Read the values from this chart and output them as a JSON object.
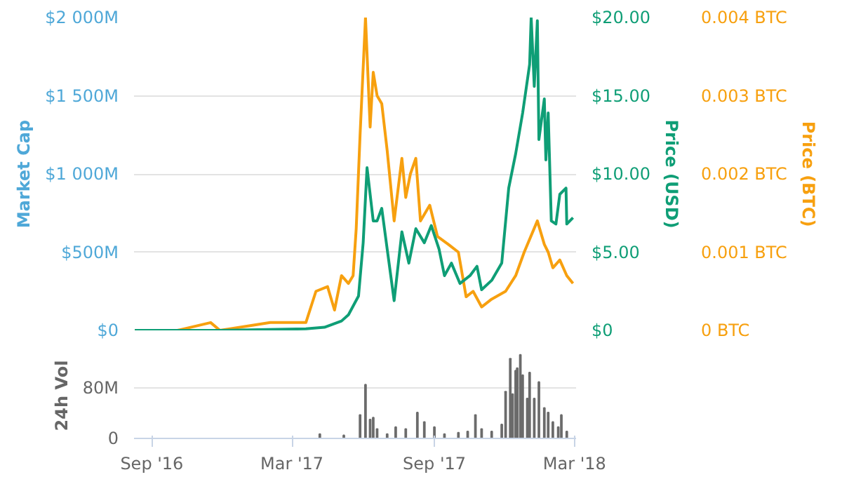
{
  "chart_data": [
    {
      "type": "line",
      "ylabel": "Market Cap",
      "y2label": "Price (USD)",
      "y3label": "Price (BTC)",
      "tick_labels": "y",
      "grid": "y",
      "xlim": [
        "2016-08-09",
        "2018-03-03"
      ],
      "ylim": [
        0,
        2000
      ],
      "yticks": [
        {
          "value": 0,
          "label": "$0"
        },
        {
          "value": 500,
          "label": "$500M"
        },
        {
          "value": 1000,
          "label": "$1 000M"
        },
        {
          "value": 1500,
          "label": "$1 500M"
        },
        {
          "value": 2000,
          "label": "$2 000M"
        }
      ],
      "y2lim": [
        0,
        20
      ],
      "y2ticks": [
        {
          "value": 0,
          "label": "$0"
        },
        {
          "value": 5,
          "label": "$5.00"
        },
        {
          "value": 10,
          "label": "$10.00"
        },
        {
          "value": 15,
          "label": "$15.00"
        },
        {
          "value": 20,
          "label": "$20.00"
        }
      ],
      "y3lim": [
        0,
        0.004
      ],
      "y3ticks": [
        {
          "value": 0,
          "label": "0 BTC"
        },
        {
          "value": 0.001,
          "label": "0.001 BTC"
        },
        {
          "value": 0.002,
          "label": "0.002 BTC"
        },
        {
          "value": 0.003,
          "label": "0.003 BTC"
        },
        {
          "value": 0.004,
          "label": "0.004 BTC"
        }
      ],
      "series": [
        {
          "axis": "y3",
          "color": "#f7a00f",
          "x": [
            "2016-08-10",
            "2016-10-04",
            "2016-11-16",
            "2016-11-28",
            "2017-02-01",
            "2017-03-19",
            "2017-04-01",
            "2017-04-16",
            "2017-04-25",
            "2017-05-04",
            "2017-05-13",
            "2017-05-19",
            "2017-05-23",
            "2017-05-28",
            "2017-06-04",
            "2017-06-10",
            "2017-06-14",
            "2017-06-19",
            "2017-06-25",
            "2017-07-02",
            "2017-07-11",
            "2017-07-21",
            "2017-07-26",
            "2017-08-01",
            "2017-08-08",
            "2017-08-14",
            "2017-08-26",
            "2017-09-05",
            "2017-09-19",
            "2017-10-02",
            "2017-10-12",
            "2017-10-21",
            "2017-11-01",
            "2017-11-14",
            "2017-12-02",
            "2017-12-15",
            "2017-12-26",
            "2018-01-12",
            "2018-01-21",
            "2018-01-26",
            "2018-02-01",
            "2018-02-10",
            "2018-02-19",
            "2018-02-27"
          ],
          "values": [
            0,
            0,
            0.0001,
            0,
            0.0001,
            0.0001,
            0.0005,
            0.00056,
            0.00026,
            0.0007,
            0.0006,
            0.0007,
            0.0013,
            0.0025,
            0.004,
            0.0026,
            0.0033,
            0.003,
            0.0029,
            0.0023,
            0.0014,
            0.0022,
            0.0017,
            0.002,
            0.0022,
            0.0014,
            0.0016,
            0.0012,
            0.0011,
            0.001,
            0.00043,
            0.0005,
            0.0003,
            0.0004,
            0.0005,
            0.0007,
            0.001,
            0.0014,
            0.0011,
            0.001,
            0.0008,
            0.0009,
            0.0007,
            0.0006
          ]
        },
        {
          "axis": "y2",
          "color": "#0f9e76",
          "x": [
            "2016-08-10",
            "2016-11-28",
            "2017-03-19",
            "2017-04-12",
            "2017-05-04",
            "2017-05-13",
            "2017-05-26",
            "2017-06-01",
            "2017-06-06",
            "2017-06-14",
            "2017-06-19",
            "2017-06-25",
            "2017-07-02",
            "2017-07-11",
            "2017-07-21",
            "2017-07-30",
            "2017-08-08",
            "2017-08-19",
            "2017-08-28",
            "2017-09-07",
            "2017-09-14",
            "2017-09-23",
            "2017-10-04",
            "2017-10-17",
            "2017-10-26",
            "2017-11-01",
            "2017-11-14",
            "2017-11-27",
            "2017-12-06",
            "2017-12-15",
            "2017-12-24",
            "2018-01-02",
            "2018-01-04",
            "2018-01-08",
            "2018-01-12",
            "2018-01-14",
            "2018-01-21",
            "2018-01-23",
            "2018-01-26",
            "2018-01-30",
            "2018-02-05",
            "2018-02-10",
            "2018-02-18",
            "2018-02-19",
            "2018-02-27"
          ],
          "values": [
            0,
            0,
            0.1,
            0.2,
            0.6,
            1.0,
            2.2,
            5.6,
            10.4,
            7.0,
            7.0,
            7.8,
            5.2,
            1.9,
            6.3,
            4.3,
            6.5,
            5.6,
            6.7,
            5.2,
            3.5,
            4.3,
            3.0,
            3.5,
            4.1,
            2.6,
            3.2,
            4.3,
            9.1,
            11.3,
            13.9,
            17.0,
            20.0,
            15.6,
            19.8,
            12.2,
            14.8,
            10.9,
            13.9,
            7.0,
            6.8,
            8.7,
            9.1,
            6.8,
            7.2
          ]
        }
      ]
    },
    {
      "type": "bar",
      "ylabel": "24h Vol",
      "grid": "y",
      "xlim": [
        "2016-08-09",
        "2018-03-03"
      ],
      "xticks": [
        {
          "value": "2016-09-01",
          "label": "Sep '16"
        },
        {
          "value": "2017-03-01",
          "label": "Mar '17"
        },
        {
          "value": "2017-09-01",
          "label": "Sep '17"
        },
        {
          "value": "2018-03-01",
          "label": "Mar '18"
        }
      ],
      "ylim": [
        0,
        135
      ],
      "yticks": [
        {
          "value": 0,
          "label": "0"
        },
        {
          "value": 80,
          "label": "80M"
        }
      ],
      "series": [
        {
          "color": "#6b6b6b",
          "x": [
            "2017-04-06",
            "2017-05-07",
            "2017-05-28",
            "2017-06-04",
            "2017-06-10",
            "2017-06-14",
            "2017-06-19",
            "2017-07-02",
            "2017-07-13",
            "2017-07-26",
            "2017-08-10",
            "2017-08-19",
            "2017-09-01",
            "2017-09-14",
            "2017-10-02",
            "2017-10-14",
            "2017-10-24",
            "2017-11-01",
            "2017-11-14",
            "2017-11-27",
            "2017-12-02",
            "2017-12-08",
            "2017-12-11",
            "2017-12-15",
            "2017-12-17",
            "2017-12-21",
            "2017-12-24",
            "2017-12-30",
            "2018-01-02",
            "2018-01-08",
            "2018-01-14",
            "2018-01-21",
            "2018-01-26",
            "2018-02-01",
            "2018-02-08",
            "2018-02-12",
            "2018-02-19"
          ],
          "values": [
            7,
            5,
            37,
            85,
            30,
            33,
            15,
            7,
            18,
            15,
            41,
            26,
            18,
            7,
            9,
            11,
            37,
            15,
            11,
            22,
            74,
            126,
            70,
            107,
            111,
            132,
            100,
            63,
            104,
            63,
            89,
            48,
            41,
            26,
            18,
            37,
            11
          ]
        }
      ]
    }
  ]
}
